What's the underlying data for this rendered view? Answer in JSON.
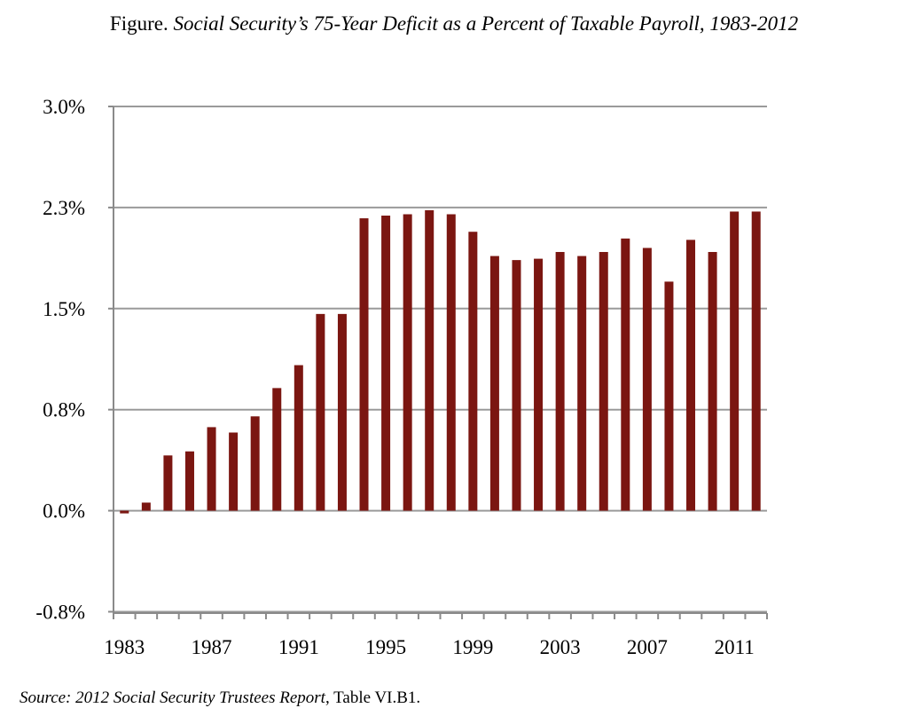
{
  "title": {
    "prefix": "Figure.",
    "main": "Social Security’s 75-Year Deficit as a Percent of Taxable Payroll, 1983-2012"
  },
  "source": {
    "prefix": "Source:",
    "report": "2012 Social Security Trustees Report",
    "rest": ", Table VI.B1."
  },
  "colors": {
    "bar": "#7b1611",
    "grid": "#9a9a9a",
    "axis": "#8a8a8a"
  },
  "chart_data": {
    "type": "bar",
    "title": "Social Security’s 75-Year Deficit as a Percent of Taxable Payroll, 1983-2012",
    "xlabel": "",
    "ylabel": "",
    "ylim": [
      -0.76,
      3.0
    ],
    "grid": true,
    "legend": "none",
    "y_tick_values": [
      3.0,
      2.25,
      1.5,
      0.75,
      0.0,
      -0.75
    ],
    "y_tick_labels": [
      "3.0%",
      "2.3%",
      "1.5%",
      "0.8%",
      "0.0%",
      "-0.8%"
    ],
    "x_tick_labels": [
      "1983",
      "1987",
      "1991",
      "1995",
      "1999",
      "2003",
      "2007",
      "2011"
    ],
    "categories": [
      "1983",
      "1984",
      "1985",
      "1986",
      "1987",
      "1988",
      "1989",
      "1990",
      "1991",
      "1992",
      "1993",
      "1994",
      "1995",
      "1996",
      "1997",
      "1998",
      "1999",
      "2000",
      "2001",
      "2002",
      "2003",
      "2004",
      "2005",
      "2006",
      "2007",
      "2008",
      "2009",
      "2010",
      "2011",
      "2012"
    ],
    "values": [
      -0.02,
      0.06,
      0.41,
      0.44,
      0.62,
      0.58,
      0.7,
      0.91,
      1.08,
      1.46,
      1.46,
      2.17,
      2.19,
      2.2,
      2.23,
      2.2,
      2.07,
      1.89,
      1.86,
      1.87,
      1.92,
      1.89,
      1.92,
      2.02,
      1.95,
      1.7,
      2.01,
      1.92,
      2.22,
      2.22
    ]
  }
}
